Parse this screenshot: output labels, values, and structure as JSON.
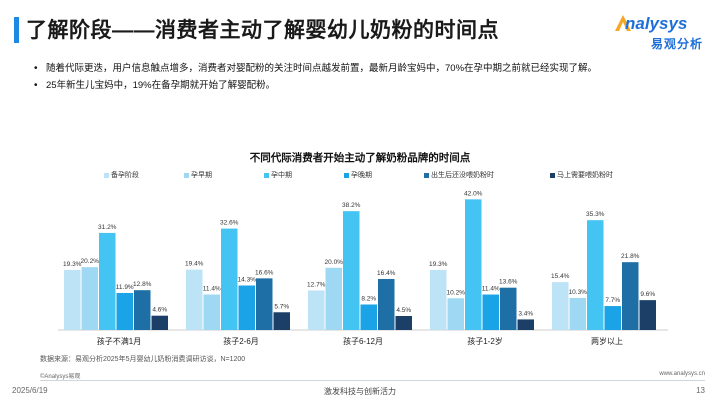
{
  "header": {
    "title": "了解阶段——消费者主动了解婴幼儿奶粉的时间点",
    "logo_word": "nalysys",
    "logo_sub": "易观分析"
  },
  "bullets": [
    "随着代际更迭，用户信息触点增多，消费者对婴配粉的关注时间点越发前置，最新月龄宝妈中，70%在孕中期之前就已经实现了解。",
    "25年新生儿宝妈中，19%在备孕期就开始了解婴配粉。"
  ],
  "colors": {
    "accent": "#1e88e5",
    "series": [
      "#bde3f7",
      "#9ed8f3",
      "#43c4f2",
      "#1aa3e6",
      "#1e6fa6",
      "#1b3f66"
    ]
  },
  "chart_data": {
    "type": "bar",
    "title": "不同代际消费者开始主动了解奶粉品牌的时间点",
    "categories": [
      "孩子不满1月",
      "孩子2-6月",
      "孩子6-12月",
      "孩子1-2岁",
      "两岁以上"
    ],
    "series": [
      {
        "name": "备孕阶段",
        "values": [
          19.3,
          19.4,
          12.7,
          19.3,
          15.4
        ]
      },
      {
        "name": "孕早期",
        "values": [
          20.2,
          11.4,
          20.0,
          10.2,
          10.3
        ]
      },
      {
        "name": "孕中期",
        "values": [
          31.2,
          32.6,
          38.2,
          42.0,
          35.3
        ]
      },
      {
        "name": "孕晚期",
        "values": [
          11.9,
          14.3,
          8.2,
          11.4,
          7.7
        ]
      },
      {
        "name": "出生后还没喂奶粉时",
        "values": [
          12.8,
          16.6,
          16.4,
          13.6,
          21.8
        ]
      },
      {
        "name": "马上需要喂奶粉时",
        "values": [
          4.6,
          5.7,
          4.5,
          3.4,
          9.6
        ]
      }
    ],
    "value_suffix": "%",
    "ylim": [
      0,
      45
    ],
    "legend_position": "top",
    "grid": false
  },
  "source": "数据来源：易观分析2025年5月婴幼儿奶粉消费调研访谈，N=1200",
  "footer": {
    "copyright": "©Analysys易观",
    "website": "www.analysys.cn",
    "date": "2025/6/19",
    "slogan": "激发科技与创新活力",
    "page": "13"
  }
}
